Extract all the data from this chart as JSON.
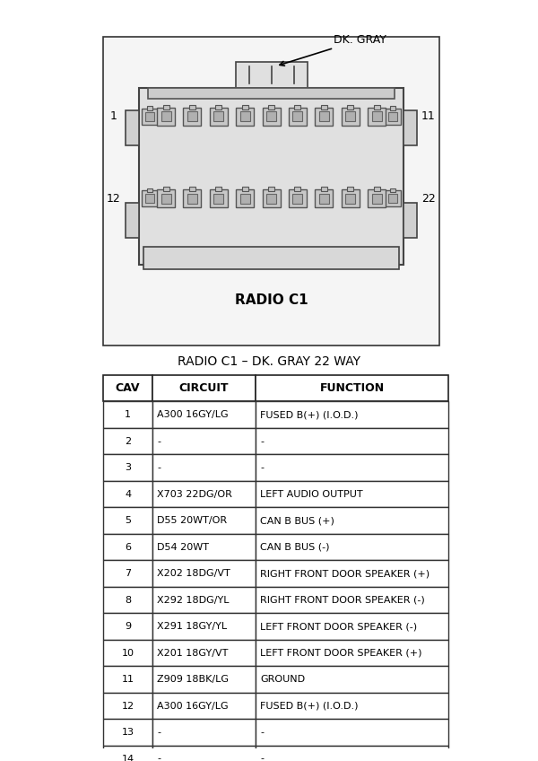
{
  "title_connector": "RADIO C1",
  "title_table": "RADIO C1 – DK. GRAY 22 WAY",
  "label_dk_gray": "DK. GRAY",
  "label_1": "1",
  "label_11": "11",
  "label_12": "12",
  "label_22": "22",
  "col_headers": [
    "CAV",
    "CIRCUIT",
    "FUNCTION"
  ],
  "rows": [
    [
      "1",
      "A300 16GY/LG",
      "FUSED B(+) (I.O.D.)"
    ],
    [
      "2",
      "-",
      "-"
    ],
    [
      "3",
      "-",
      "-"
    ],
    [
      "4",
      "X703 22DG/OR",
      "LEFT AUDIO OUTPUT"
    ],
    [
      "5",
      "D55 20WT/OR",
      "CAN B BUS (+)"
    ],
    [
      "6",
      "D54 20WT",
      "CAN B BUS (-)"
    ],
    [
      "7",
      "X202 18DG/VT",
      "RIGHT FRONT DOOR SPEAKER (+)"
    ],
    [
      "8",
      "X292 18DG/YL",
      "RIGHT FRONT DOOR SPEAKER (-)"
    ],
    [
      "9",
      "X291 18GY/YL",
      "LEFT FRONT DOOR SPEAKER (-)"
    ],
    [
      "10",
      "X201 18GY/VT",
      "LEFT FRONT DOOR SPEAKER (+)"
    ],
    [
      "11",
      "Z909 18BK/LG",
      "GROUND"
    ],
    [
      "12",
      "A300 16GY/LG",
      "FUSED B(+) (I.O.D.)"
    ],
    [
      "13",
      "-",
      "-"
    ],
    [
      "14",
      "-",
      "-"
    ]
  ],
  "bg_color": "#ffffff",
  "line_color": "#000000",
  "connector_fill": "#e8e8e8",
  "connector_stroke": "#555555"
}
